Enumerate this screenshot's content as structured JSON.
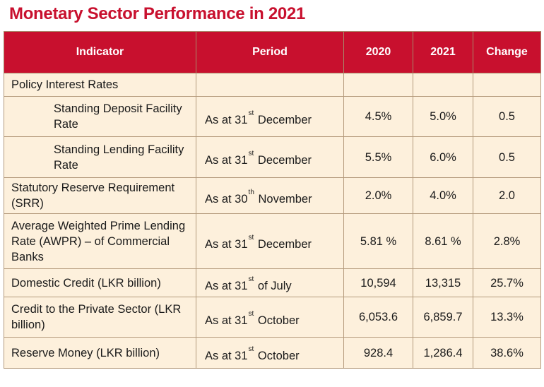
{
  "title": "Monetary Sector Performance in 2021",
  "headers": {
    "indicator": "Indicator",
    "period": "Period",
    "y2020": "2020",
    "y2021": "2021",
    "change": "Change"
  },
  "rows": [
    {
      "indicator": "Policy Interest Rates",
      "prefix": "",
      "sup": "",
      "suffix": "",
      "v2020": "",
      "v2021": "",
      "change": ""
    },
    {
      "indicator": "Standing Deposit Facility Rate",
      "prefix": "As at 31",
      "sup": "st",
      "suffix": "December",
      "v2020": "4.5%",
      "v2021": "5.0%",
      "change": "0.5"
    },
    {
      "indicator": "Standing Lending Facility Rate",
      "prefix": "As at 31",
      "sup": "st",
      "suffix": "December",
      "v2020": "5.5%",
      "v2021": "6.0%",
      "change": "0.5"
    },
    {
      "indicator": "Statutory Reserve Requirement (SRR)",
      "prefix": "As at 30",
      "sup": "th",
      "suffix": "November",
      "v2020": "2.0%",
      "v2021": "4.0%",
      "change": "2.0"
    },
    {
      "indicator": "Average Weighted Prime Lending Rate (AWPR) – of Commercial Banks",
      "prefix": "As at 31",
      "sup": "st",
      "suffix": "December",
      "v2020": "5.81 %",
      "v2021": "8.61 %",
      "change": "2.8%"
    },
    {
      "indicator": "Domestic Credit (LKR billion)",
      "prefix": "As at 31",
      "sup": "st",
      "suffix": "of July",
      "v2020": "10,594",
      "v2021": "13,315",
      "change": "25.7%"
    },
    {
      "indicator": "Credit to the Private Sector (LKR billion)",
      "prefix": "As at 31",
      "sup": "st",
      "suffix": "October",
      "v2020": "6,053.6",
      "v2021": "6,859.7",
      "change": "13.3%"
    },
    {
      "indicator": "Reserve Money (LKR billion)",
      "prefix": "As at 31",
      "sup": "st",
      "suffix": "October",
      "v2020": "928.4",
      "v2021": "1,286.4",
      "change": "38.6%"
    }
  ]
}
